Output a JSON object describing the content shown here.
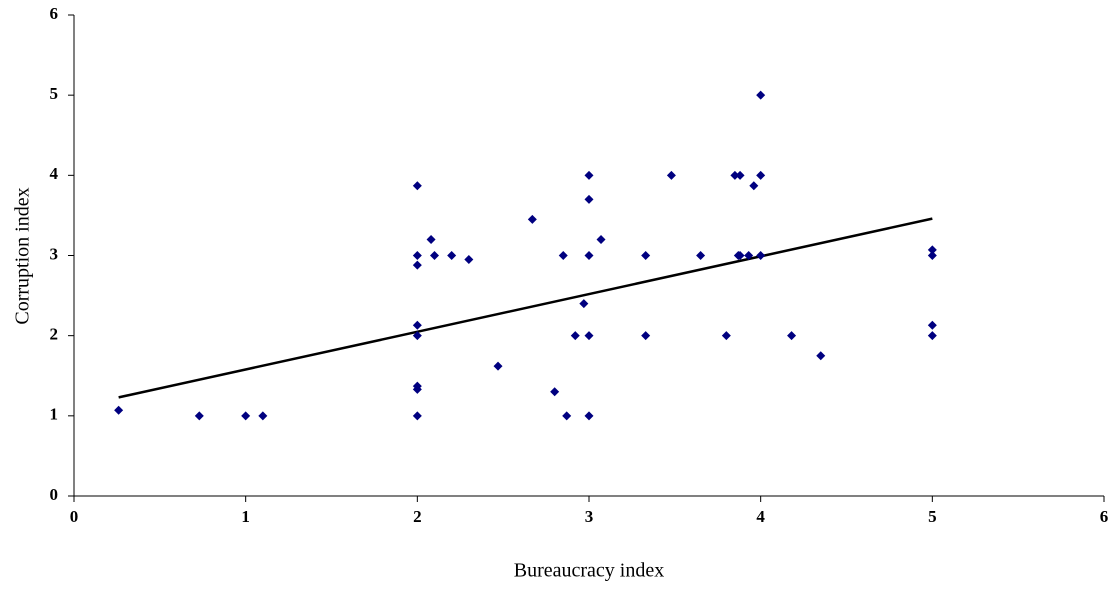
{
  "chart_data": {
    "type": "scatter",
    "xlabel": "Bureaucracy index",
    "ylabel": "Corruption index",
    "xlim": [
      0,
      6
    ],
    "ylim": [
      0,
      6
    ],
    "xticks": [
      0,
      1,
      2,
      3,
      4,
      5,
      6
    ],
    "yticks": [
      0,
      1,
      2,
      3,
      4,
      5,
      6
    ],
    "grid": false,
    "series": [
      {
        "color": "#000080",
        "x": [
          0.26,
          0.73,
          1,
          1.1,
          2,
          2,
          2,
          2,
          2,
          2,
          2,
          2,
          2.08,
          2.1,
          2.2,
          2.3,
          2.47,
          2.67,
          2.8,
          2.85,
          2.87,
          2.92,
          2.97,
          3,
          3,
          3,
          3,
          3,
          3.07,
          3.33,
          3.33,
          3.48,
          3.65,
          3.8,
          3.85,
          3.88,
          3.87,
          3.88,
          3.93,
          3.96,
          4,
          4,
          4,
          4.18,
          4.35,
          5,
          5,
          5,
          5
        ],
        "values": [
          1.07,
          1,
          1,
          1,
          3.87,
          3,
          2.88,
          2.13,
          2,
          1.37,
          1.33,
          1,
          3.2,
          3,
          3,
          2.95,
          1.62,
          3.45,
          1.3,
          3,
          1,
          2,
          2.4,
          4,
          3.7,
          3,
          2,
          1,
          3.2,
          3,
          2,
          4,
          3,
          2,
          4,
          4,
          3,
          3,
          3,
          3.87,
          5,
          4,
          3,
          2,
          1.75,
          3.07,
          3,
          2.13,
          2
        ]
      }
    ],
    "trendline": {
      "color": "#000000",
      "x": [
        0.26,
        5
      ],
      "values": [
        1.23,
        3.46
      ]
    }
  }
}
